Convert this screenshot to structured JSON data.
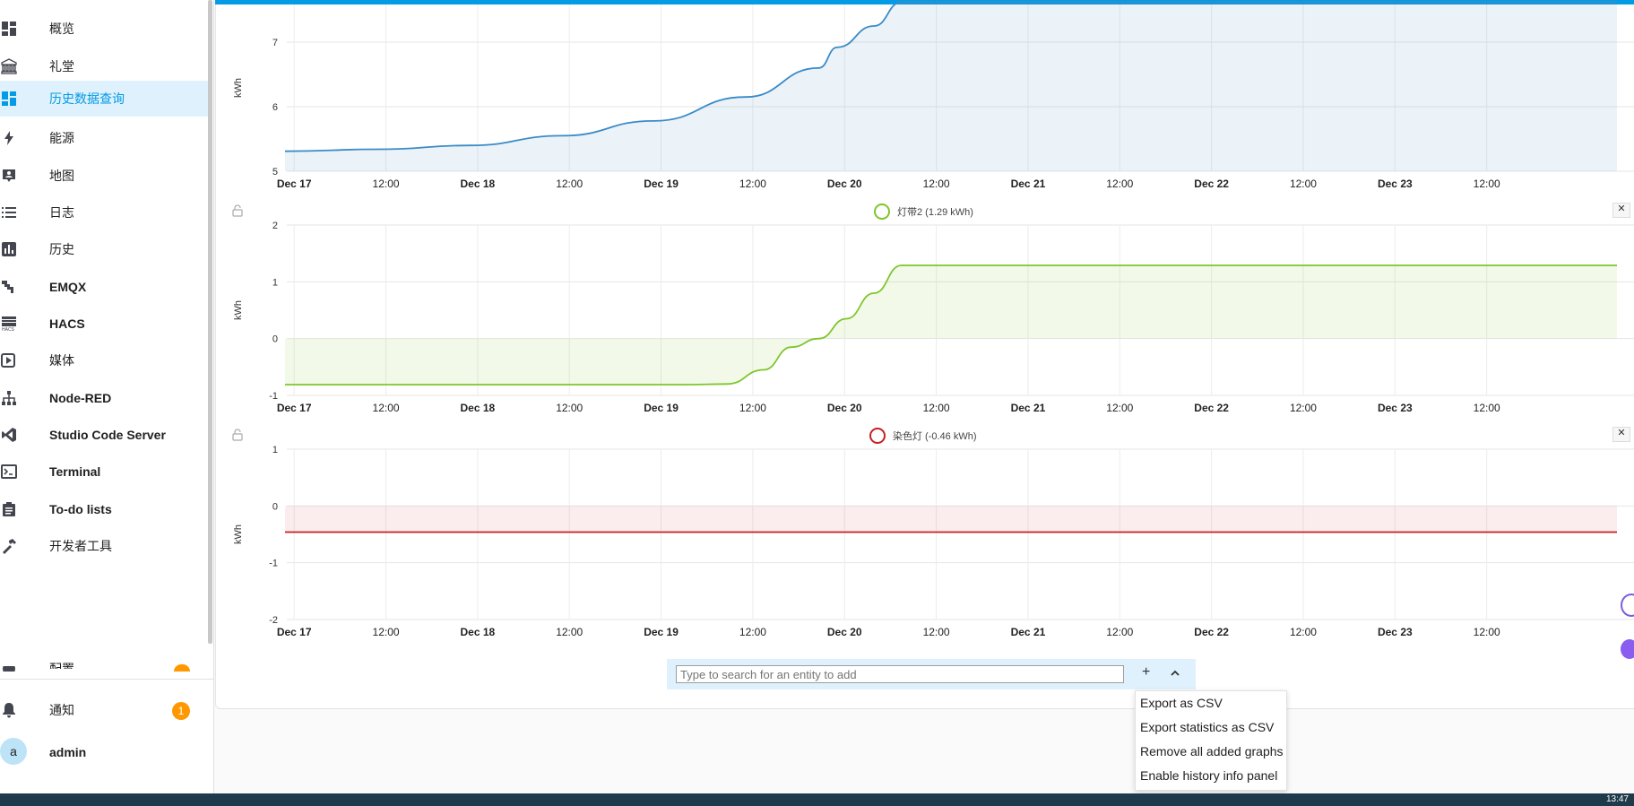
{
  "sidebar": {
    "items": [
      {
        "label": "概览",
        "icon": "dashboard-icon"
      },
      {
        "label": "礼堂",
        "icon": "bank-icon"
      },
      {
        "label": "历史数据查询",
        "icon": "dashboard-icon"
      },
      {
        "label": "能源",
        "icon": "lightning-icon"
      },
      {
        "label": "地图",
        "icon": "map-person-icon"
      },
      {
        "label": "日志",
        "icon": "list-icon"
      },
      {
        "label": "历史",
        "icon": "chart-box-icon"
      },
      {
        "label": "EMQX",
        "icon": "plugin-icon"
      },
      {
        "label": "HACS",
        "icon": "hacs-icon"
      },
      {
        "label": "媒体",
        "icon": "play-box-icon"
      },
      {
        "label": "Node-RED",
        "icon": "sitemap-icon"
      },
      {
        "label": "Studio Code Server",
        "icon": "vscode-icon"
      },
      {
        "label": "Terminal",
        "icon": "console-icon"
      },
      {
        "label": "To-do lists",
        "icon": "clipboard-list-icon"
      },
      {
        "label": "开发者工具",
        "icon": "hammer-icon"
      }
    ],
    "partial_item_label": "配置",
    "notifications": {
      "label": "通知",
      "count": "1"
    },
    "user": {
      "label": "admin",
      "avatar_letter": "a"
    }
  },
  "colors": {
    "accent": "#039be5",
    "active_bg": "#dff1fc",
    "series_blue": "#3a8bc7",
    "series_green": "#7ec62a",
    "series_red": "#c81e23",
    "badge": "#ff9800"
  },
  "charts": {
    "y_unit": "kWh",
    "x_ticks": [
      "Dec 17",
      "12:00",
      "Dec 18",
      "12:00",
      "Dec 19",
      "12:00",
      "Dec 20",
      "12:00",
      "Dec 21",
      "12:00",
      "Dec 22",
      "12:00",
      "Dec 23",
      "12:00"
    ]
  },
  "chart_data": [
    {
      "type": "area",
      "title": "",
      "ylabel": "kWh",
      "ylim": [
        5,
        8
      ],
      "yticks": [
        5,
        6,
        7
      ],
      "xlim": [
        0,
        7.25
      ],
      "x_unit": "days after Dec 17 00:00",
      "series": [
        {
          "color": "#3a8bc7",
          "x": [
            -0.4,
            0.5,
            1.0,
            1.5,
            2.0,
            2.5,
            2.9,
            3.0,
            3.2,
            3.35,
            7.25
          ],
          "y": [
            5.31,
            5.34,
            5.4,
            5.55,
            5.78,
            6.15,
            6.6,
            6.92,
            7.25,
            7.62,
            7.62
          ]
        }
      ]
    },
    {
      "type": "area",
      "title": "灯带2 (1.29 kWh)",
      "legend": "灯带2 (1.29 kWh)",
      "ylabel": "kWh",
      "ylim": [
        -1,
        2
      ],
      "yticks": [
        -1,
        0,
        1,
        2
      ],
      "xlim": [
        0,
        7.25
      ],
      "series": [
        {
          "name": "灯带2 (1.29 kWh)",
          "color": "#7ec62a",
          "x": [
            -0.4,
            2.2,
            2.4,
            2.6,
            2.75,
            2.9,
            3.05,
            3.2,
            3.35,
            7.25
          ],
          "y": [
            -0.81,
            -0.81,
            -0.8,
            -0.55,
            -0.15,
            0.0,
            0.35,
            0.8,
            1.29,
            1.29
          ]
        }
      ]
    },
    {
      "type": "area",
      "title": "染色灯 (-0.46 kWh)",
      "legend": "染色灯 (-0.46 kWh)",
      "ylabel": "kWh",
      "ylim": [
        -2,
        1
      ],
      "yticks": [
        -2,
        -1,
        0,
        1
      ],
      "xlim": [
        0,
        7.25
      ],
      "series": [
        {
          "name": "染色灯 (-0.46 kWh)",
          "color": "#c81e23",
          "x": [
            -0.4,
            7.25
          ],
          "y": [
            -0.46,
            -0.46
          ]
        }
      ]
    }
  ],
  "search": {
    "placeholder": "Type to search for an entity to add",
    "add_label": "+"
  },
  "menu": {
    "items": [
      "Export as CSV",
      "Export statistics as CSV",
      "Remove all added graphs",
      "Enable history info panel"
    ]
  },
  "taskbar": {
    "clock": "13:47"
  }
}
